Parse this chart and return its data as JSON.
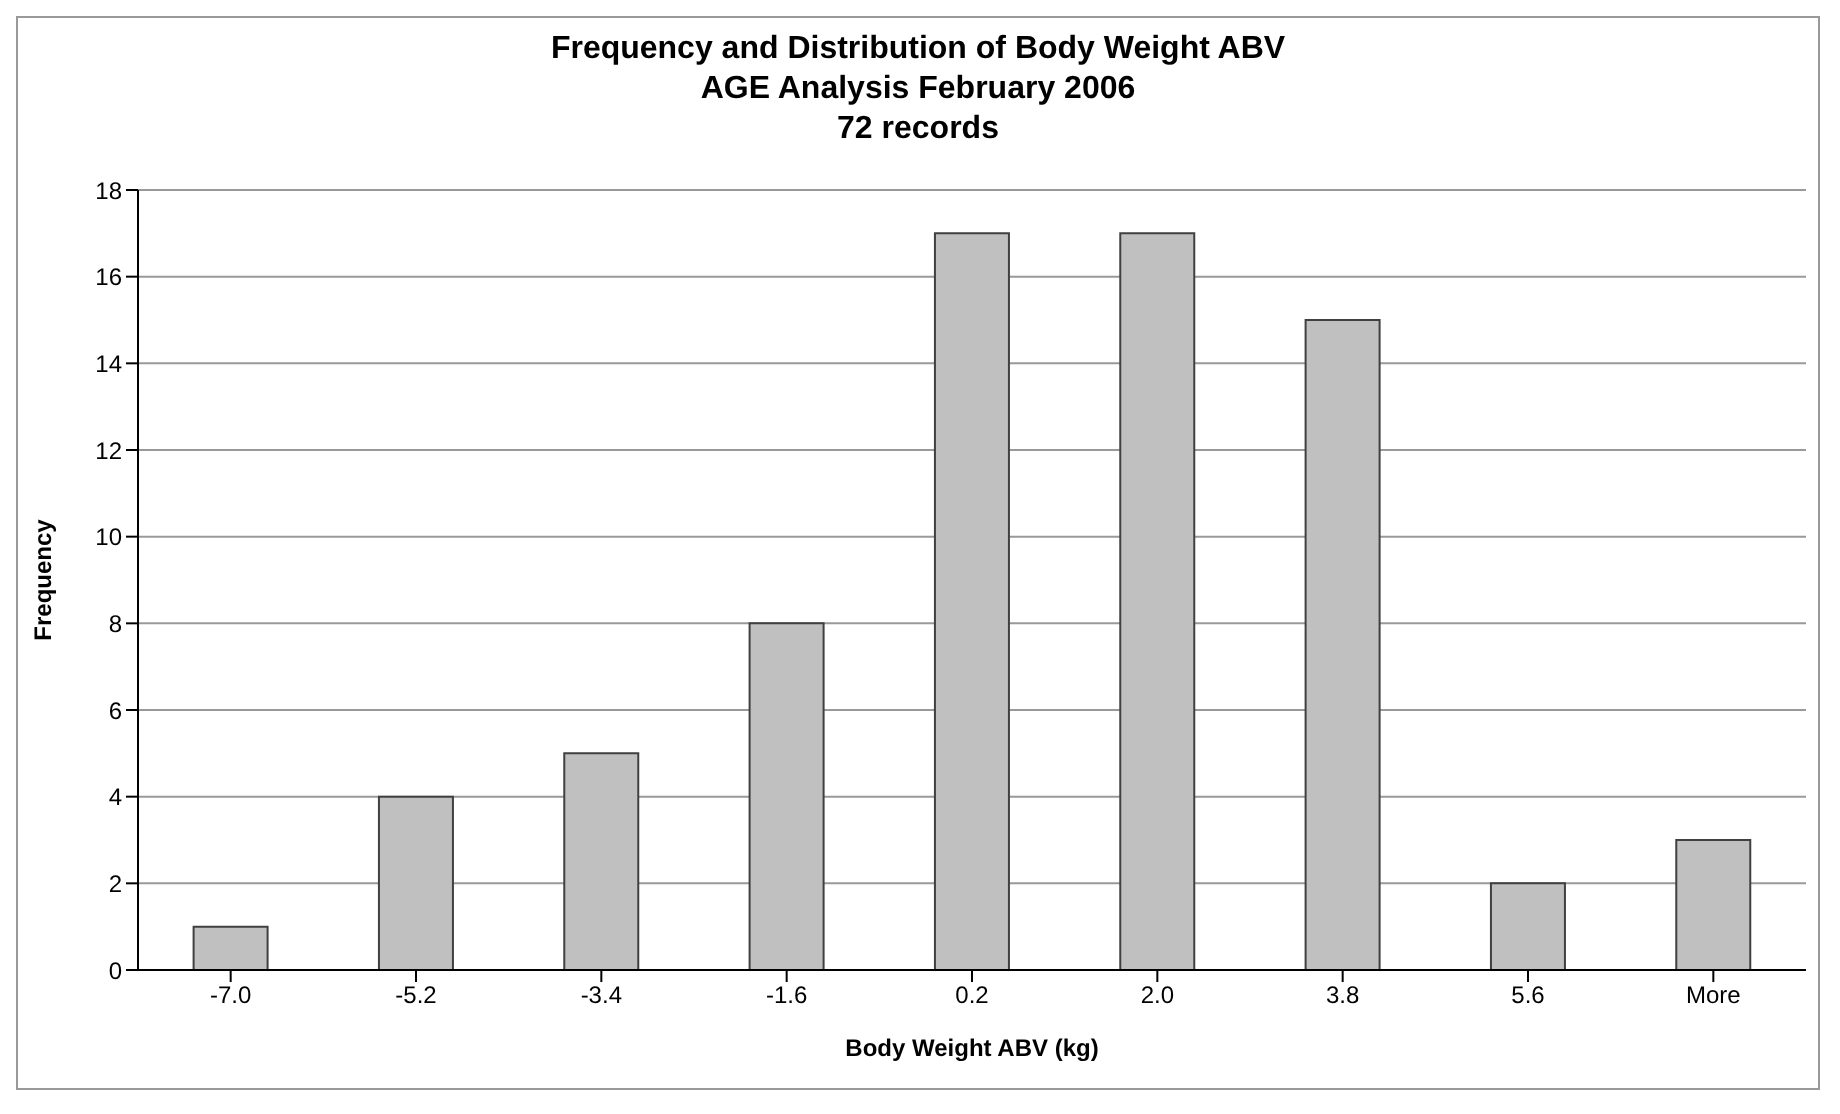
{
  "chart_data": {
    "type": "bar",
    "title": "Frequency and Distribution of Body Weight ABV",
    "subtitle": "AGE Analysis February 2006\n72 records",
    "xlabel": "Body Weight ABV (kg)",
    "ylabel": "Frequency",
    "categories": [
      "-7.0",
      "-5.2",
      "-3.4",
      "-1.6",
      "0.2",
      "2.0",
      "3.8",
      "5.6",
      "More"
    ],
    "values": [
      1,
      4,
      5,
      8,
      17,
      17,
      15,
      2,
      3
    ],
    "color": "#c0c0c0",
    "ylim": [
      0,
      18
    ],
    "yticks": [
      0,
      2,
      4,
      6,
      8,
      10,
      12,
      14,
      16,
      18
    ],
    "grid": "y"
  }
}
